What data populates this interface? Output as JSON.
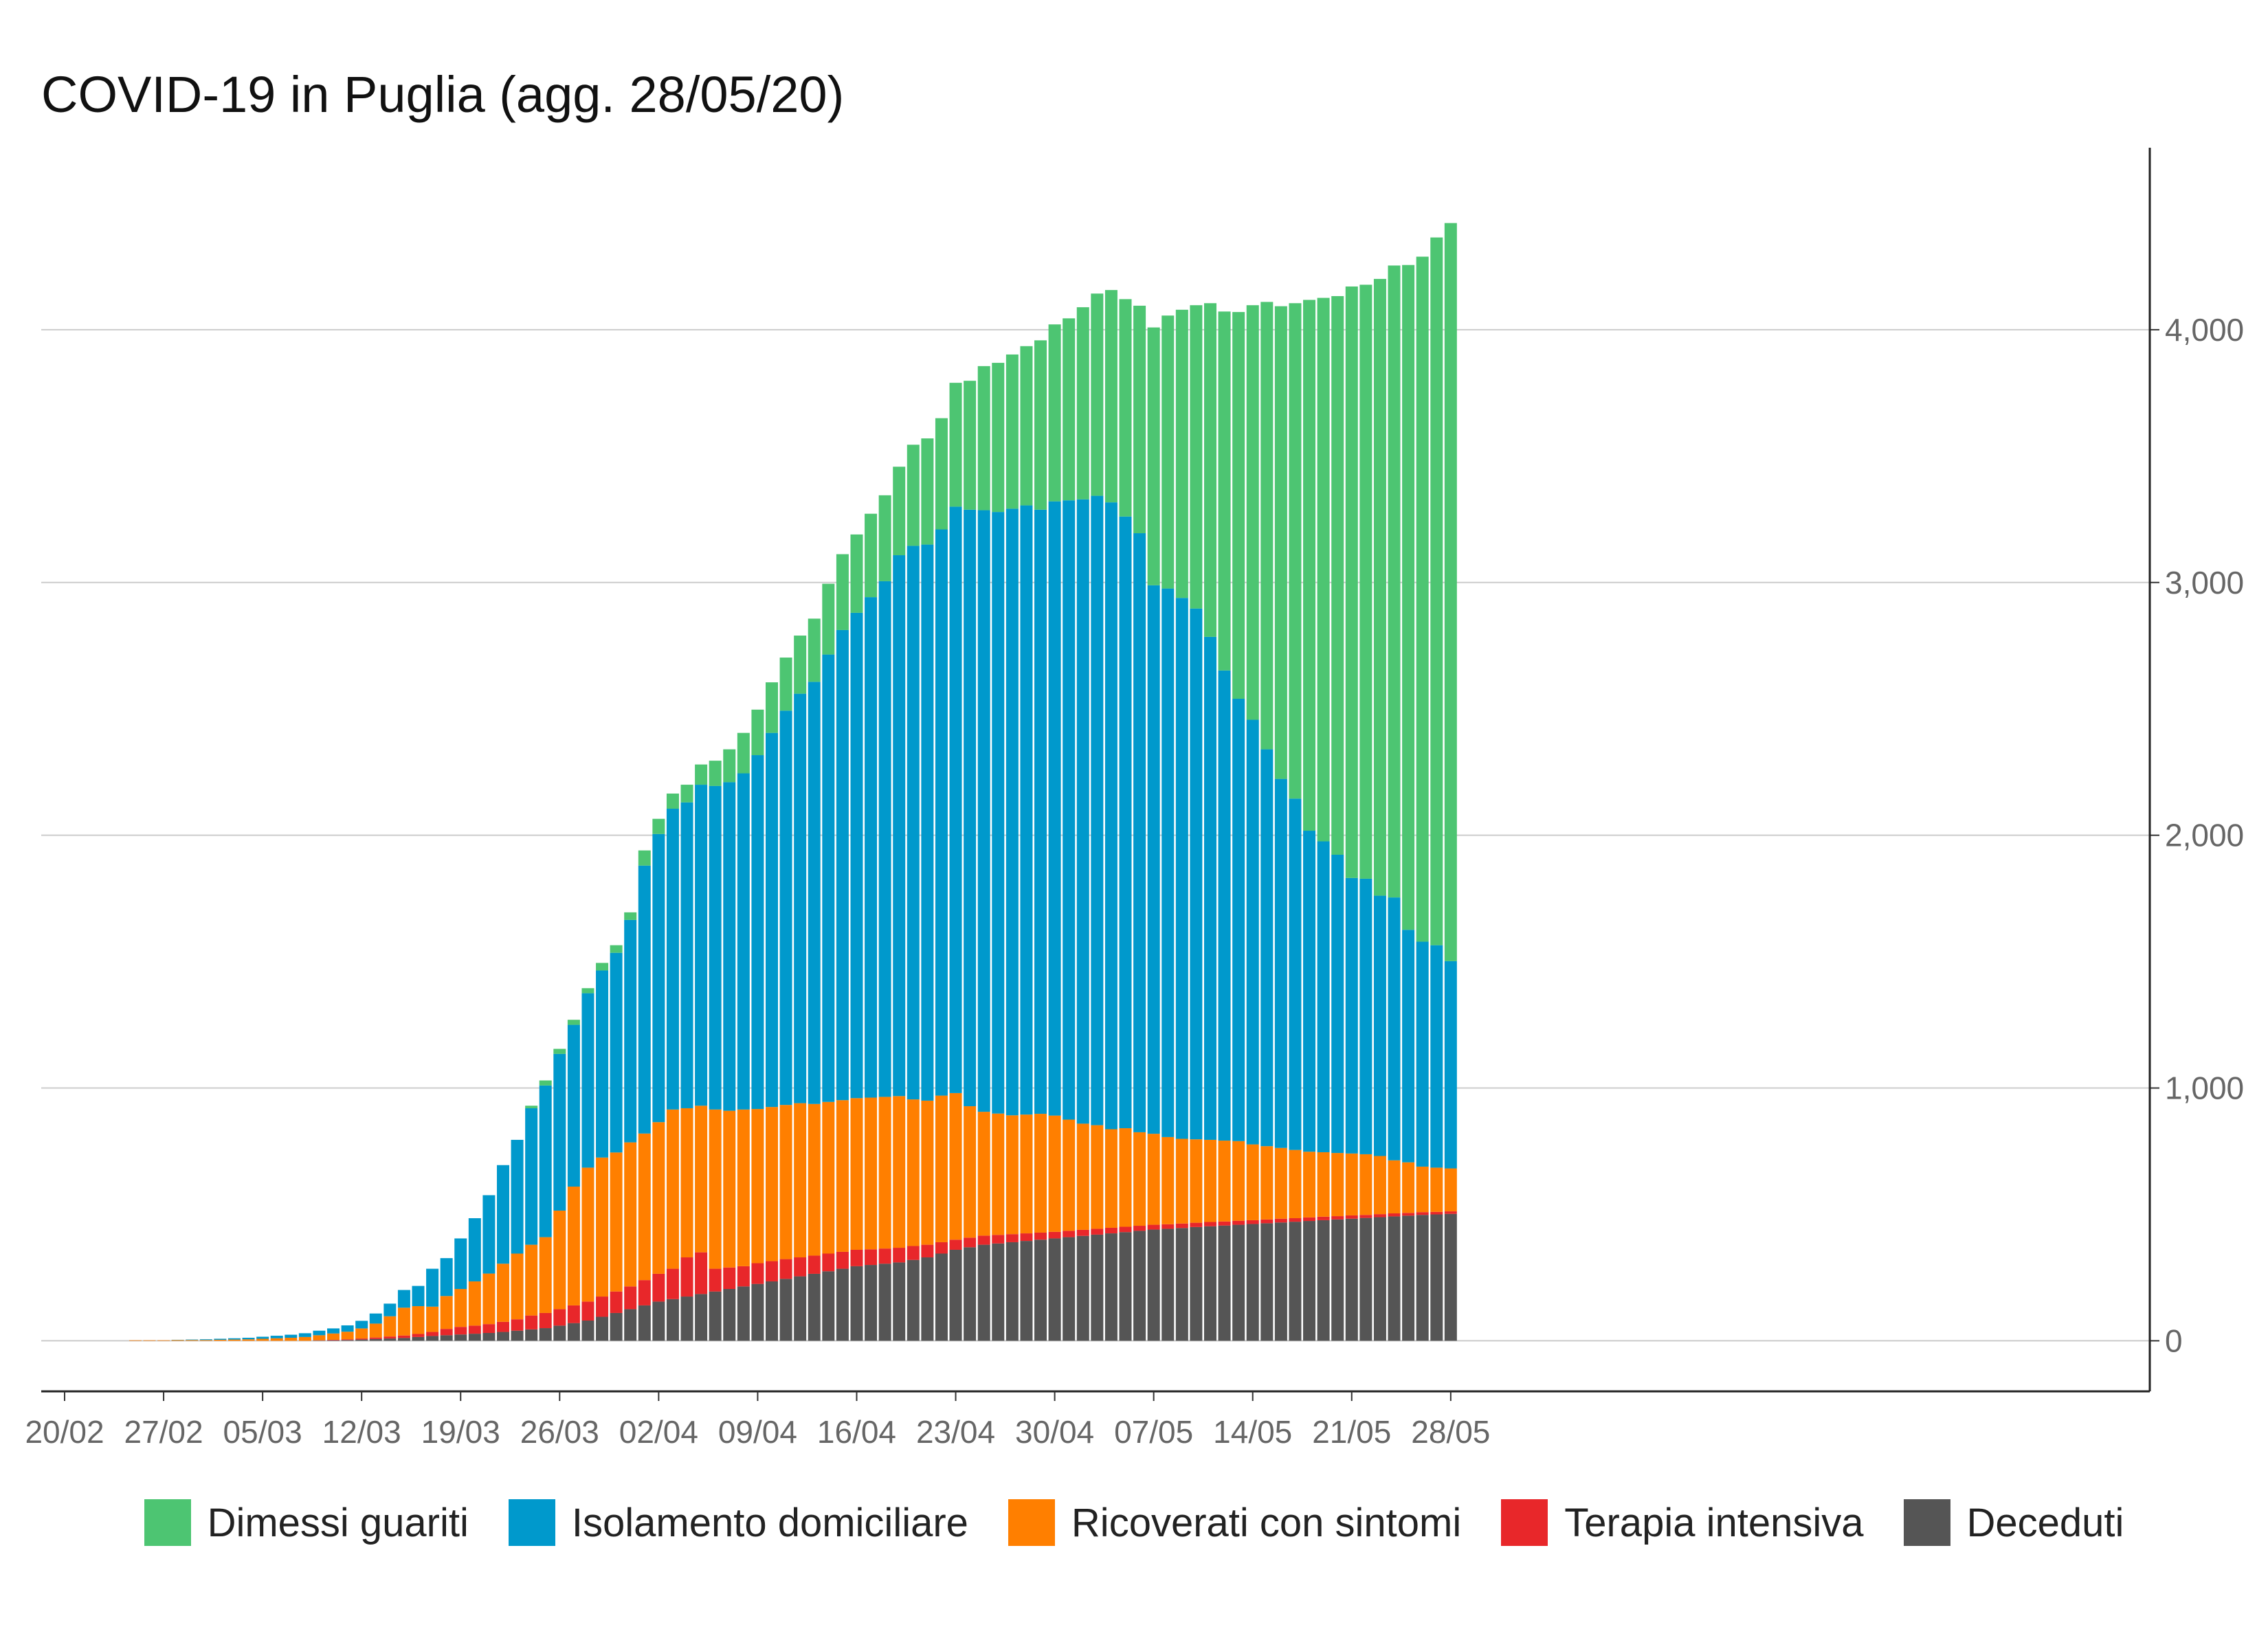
{
  "title": "COVID-19 in Puglia (agg. 28/05/20)",
  "chart_data": {
    "type": "bar",
    "stacked": true,
    "title": "COVID-19 in Puglia (agg. 28/05/20)",
    "xlabel": "",
    "ylabel": "",
    "ylim": [
      -200,
      4720
    ],
    "y_ticks": [
      0,
      1000,
      2000,
      3000,
      4000
    ],
    "y_tick_labels": [
      "0",
      "1,000",
      "2,000",
      "3,000",
      "4,000"
    ],
    "y_axis_position": "right",
    "grid": "horizontal",
    "legend_position": "bottom",
    "x_tick_labels": [
      "20/02",
      "27/02",
      "05/03",
      "12/03",
      "19/03",
      "26/03",
      "02/04",
      "09/04",
      "16/04",
      "23/04",
      "30/04",
      "07/05",
      "14/05",
      "21/05",
      "28/05"
    ],
    "x_tick_every": 7,
    "x_start_label": "20/02",
    "categories": [
      "20/02",
      "21/02",
      "22/02",
      "23/02",
      "24/02",
      "25/02",
      "26/02",
      "27/02",
      "28/02",
      "29/02",
      "01/03",
      "02/03",
      "03/03",
      "04/03",
      "05/03",
      "06/03",
      "07/03",
      "08/03",
      "09/03",
      "10/03",
      "11/03",
      "12/03",
      "13/03",
      "14/03",
      "15/03",
      "16/03",
      "17/03",
      "18/03",
      "19/03",
      "20/03",
      "21/03",
      "22/03",
      "23/03",
      "24/03",
      "25/03",
      "26/03",
      "27/03",
      "28/03",
      "29/03",
      "30/03",
      "31/03",
      "01/04",
      "02/04",
      "03/04",
      "04/04",
      "05/04",
      "06/04",
      "07/04",
      "08/04",
      "09/04",
      "10/04",
      "11/04",
      "12/04",
      "13/04",
      "14/04",
      "15/04",
      "16/04",
      "17/04",
      "18/04",
      "19/04",
      "20/04",
      "21/04",
      "22/04",
      "23/04",
      "24/04",
      "25/04",
      "26/04",
      "27/04",
      "28/04",
      "29/04",
      "30/04",
      "01/05",
      "02/05",
      "03/05",
      "04/05",
      "05/05",
      "06/05",
      "07/05",
      "08/05",
      "09/05",
      "10/05",
      "11/05",
      "12/05",
      "13/05",
      "14/05",
      "15/05",
      "16/05",
      "17/05",
      "18/05",
      "19/05",
      "20/05",
      "21/05",
      "22/05",
      "23/05",
      "24/05",
      "25/05",
      "26/05",
      "27/05",
      "28/05"
    ],
    "series": [
      {
        "name": "Deceduti",
        "color": "#555555",
        "values": [
          0,
          0,
          0,
          0,
          0,
          0,
          0,
          0,
          0,
          0,
          0,
          0,
          0,
          0,
          0,
          0,
          0,
          0,
          1,
          2,
          3,
          5,
          7,
          9,
          11,
          15,
          19,
          22,
          25,
          28,
          31,
          35,
          40,
          45,
          50,
          60,
          70,
          80,
          95,
          110,
          125,
          140,
          155,
          165,
          175,
          185,
          195,
          205,
          215,
          225,
          235,
          245,
          255,
          265,
          275,
          285,
          295,
          300,
          305,
          310,
          320,
          330,
          345,
          360,
          370,
          380,
          385,
          390,
          395,
          400,
          405,
          410,
          415,
          420,
          425,
          430,
          435,
          440,
          443,
          446,
          450,
          453,
          456,
          459,
          462,
          465,
          468,
          471,
          474,
          477,
          480,
          483,
          486,
          489,
          492,
          495,
          498,
          500,
          502
        ]
      },
      {
        "name": "Terapia intensiva",
        "color": "#e8272a",
        "values": [
          0,
          0,
          0,
          0,
          0,
          0,
          0,
          0,
          0,
          0,
          0,
          0,
          0,
          0,
          0,
          0,
          0,
          0,
          1,
          2,
          3,
          4,
          6,
          8,
          10,
          12,
          16,
          25,
          30,
          32,
          35,
          40,
          45,
          55,
          60,
          65,
          70,
          75,
          80,
          85,
          90,
          100,
          110,
          120,
          155,
          165,
          90,
          85,
          80,
          82,
          80,
          78,
          75,
          72,
          70,
          67,
          65,
          62,
          60,
          58,
          55,
          50,
          45,
          40,
          38,
          36,
          34,
          32,
          30,
          28,
          26,
          25,
          24,
          23,
          22,
          21,
          20,
          19,
          18,
          18,
          17,
          17,
          16,
          16,
          15,
          15,
          15,
          14,
          14,
          14,
          13,
          13,
          12,
          12,
          12,
          11,
          11,
          10,
          10
        ]
      },
      {
        "name": "Ricoverati con sintomi",
        "color": "#ff7f00",
        "values": [
          0,
          0,
          0,
          0,
          0,
          2,
          2,
          2,
          3,
          3,
          3,
          4,
          5,
          6,
          8,
          10,
          12,
          15,
          20,
          25,
          30,
          40,
          55,
          80,
          110,
          110,
          100,
          130,
          150,
          175,
          200,
          230,
          260,
          280,
          300,
          390,
          470,
          530,
          550,
          550,
          570,
          580,
          600,
          630,
          590,
          580,
          630,
          620,
          620,
          610,
          610,
          610,
          610,
          600,
          600,
          600,
          600,
          600,
          600,
          600,
          580,
          570,
          580,
          580,
          520,
          490,
          480,
          470,
          470,
          470,
          460,
          440,
          420,
          410,
          390,
          390,
          370,
          360,
          345,
          335,
          330,
          325,
          320,
          315,
          300,
          290,
          280,
          270,
          260,
          255,
          250,
          245,
          240,
          230,
          210,
          200,
          180,
          175,
          170
        ]
      },
      {
        "name": "Isolamento domiciliare",
        "color": "#0099cc",
        "values": [
          0,
          0,
          0,
          0,
          0,
          0,
          0,
          0,
          1,
          2,
          3,
          4,
          5,
          6,
          8,
          10,
          12,
          15,
          18,
          20,
          25,
          30,
          40,
          50,
          70,
          80,
          150,
          150,
          200,
          250,
          310,
          390,
          450,
          540,
          600,
          620,
          640,
          690,
          740,
          790,
          880,
          1060,
          1140,
          1190,
          1210,
          1270,
          1280,
          1300,
          1330,
          1400,
          1480,
          1560,
          1620,
          1670,
          1770,
          1860,
          1920,
          1980,
          2040,
          2140,
          2190,
          2200,
          2240,
          2320,
          2360,
          2380,
          2380,
          2400,
          2410,
          2390,
          2430,
          2450,
          2470,
          2490,
          2480,
          2420,
          2370,
          2170,
          2170,
          2140,
          2100,
          1990,
          1860,
          1750,
          1680,
          1570,
          1460,
          1390,
          1270,
          1230,
          1180,
          1090,
          1090,
          1030,
          1040,
          920,
          890,
          880,
          820
        ]
      },
      {
        "name": "Dimessi guariti",
        "color": "#4dc572",
        "values": [
          0,
          0,
          0,
          0,
          0,
          0,
          0,
          0,
          0,
          0,
          0,
          0,
          0,
          0,
          0,
          0,
          0,
          0,
          0,
          0,
          0,
          0,
          0,
          0,
          0,
          0,
          0,
          0,
          0,
          0,
          0,
          0,
          0,
          10,
          20,
          20,
          20,
          20,
          30,
          30,
          30,
          60,
          60,
          60,
          70,
          80,
          100,
          130,
          160,
          180,
          200,
          210,
          230,
          250,
          280,
          300,
          310,
          330,
          340,
          350,
          400,
          420,
          440,
          490,
          510,
          570,
          590,
          610,
          630,
          670,
          700,
          720,
          760,
          800,
          840,
          860,
          900,
          1020,
          1080,
          1140,
          1200,
          1320,
          1420,
          1530,
          1640,
          1770,
          1870,
          1960,
          2100,
          2150,
          2210,
          2340,
          2350,
          2440,
          2500,
          2630,
          2710,
          2800,
          2920
        ]
      }
    ]
  },
  "legend": [
    {
      "label": "Dimessi guariti",
      "color": "#4dc572"
    },
    {
      "label": "Isolamento domiciliare",
      "color": "#0099cc"
    },
    {
      "label": "Ricoverati con sintomi",
      "color": "#ff7f00"
    },
    {
      "label": "Terapia intensiva",
      "color": "#e8272a"
    },
    {
      "label": "Deceduti",
      "color": "#555555"
    }
  ]
}
